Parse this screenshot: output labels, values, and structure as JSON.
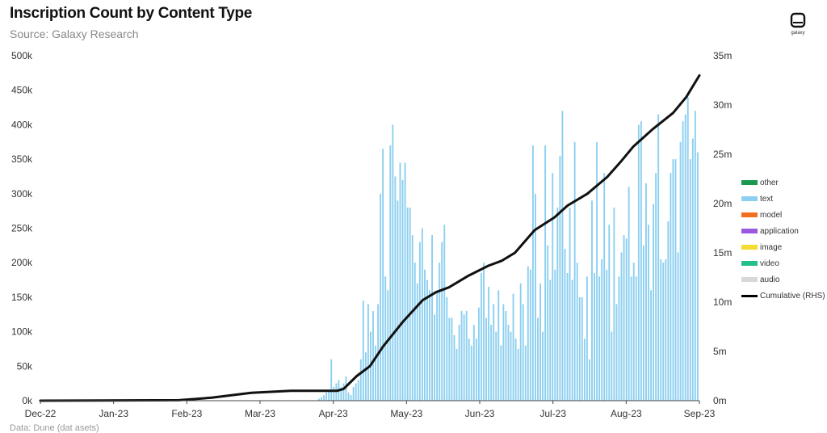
{
  "header": {
    "title": "Inscription Count by Content Type",
    "subtitle": "Source: Galaxy Research",
    "logo_text": "galaxy",
    "note": "Data: Dune (dat   asets)"
  },
  "colors": {
    "other": "#1a9850",
    "text": "#8ccff0",
    "model": "#f07020",
    "application": "#9b59e0",
    "image": "#f5dc32",
    "video": "#22bf8c",
    "audio": "#d8d8d8",
    "cumulative": "#111111",
    "axis": "#444444"
  },
  "chart_data": {
    "type": "bar",
    "title": "Inscription Count by Content Type",
    "subtitle": "Source: Galaxy Research",
    "x_tick_labels": [
      "Dec-22",
      "Jan-23",
      "Feb-23",
      "Mar-23",
      "Apr-23",
      "May-23",
      "Jun-23",
      "Jul-23",
      "Aug-23",
      "Sep-23"
    ],
    "y_left": {
      "range": [
        0,
        500000
      ],
      "ticks": [
        "0k",
        "50k",
        "100k",
        "150k",
        "200k",
        "250k",
        "300k",
        "350k",
        "400k",
        "450k",
        "500k"
      ]
    },
    "y_right": {
      "range": [
        0,
        35000000
      ],
      "ticks": [
        "0m",
        "5m",
        "10m",
        "15m",
        "20m",
        "25m",
        "30m",
        "35m"
      ]
    },
    "legend": [
      "other",
      "text",
      "model",
      "application",
      "image",
      "video",
      "audio",
      "Cumulative (RHS)"
    ],
    "legend_position": "right",
    "grid": false,
    "bar_stack_order": [
      "image",
      "application",
      "text"
    ],
    "series": [
      {
        "name": "text",
        "axis": "left",
        "stacked": true,
        "values": [
          0,
          0,
          0,
          0,
          0,
          0,
          0,
          0,
          0,
          0,
          0,
          0,
          0,
          0,
          0,
          0,
          0,
          0,
          0,
          0,
          0,
          0,
          0,
          0,
          0,
          0,
          0,
          0,
          0,
          0,
          0,
          0,
          0,
          0,
          0,
          0,
          0,
          0,
          0,
          0,
          0,
          0,
          0,
          0,
          0,
          0,
          0,
          0,
          0,
          0,
          0,
          0,
          0,
          0,
          0,
          0,
          0,
          0,
          0,
          0,
          0,
          0,
          0,
          0,
          0,
          0,
          0,
          0,
          0,
          0,
          0,
          0,
          0,
          0,
          0,
          0,
          0,
          0,
          0,
          0,
          0,
          0,
          0,
          0,
          0,
          0,
          0,
          0,
          0,
          0,
          0,
          0,
          0,
          0,
          0,
          0,
          0,
          0,
          0,
          0,
          0,
          0,
          0,
          0,
          0,
          0,
          0,
          0,
          0,
          0,
          0,
          0,
          0,
          3000,
          5000,
          8000,
          12000,
          15000,
          60000,
          20000,
          25000,
          30000,
          20000,
          25000,
          35000,
          12000,
          8000,
          20000,
          25000,
          30000,
          60000,
          145000,
          70000,
          140000,
          100000,
          130000,
          80000,
          140000,
          300000,
          365000,
          180000,
          160000,
          370000,
          400000,
          325000,
          290000,
          345000,
          320000,
          345000,
          280000,
          280000,
          240000,
          200000,
          170000,
          230000,
          250000,
          190000,
          175000,
          160000,
          240000,
          125000,
          160000,
          200000,
          230000,
          255000,
          150000,
          120000,
          120000,
          95000,
          75000,
          110000,
          130000,
          125000,
          130000,
          90000,
          80000,
          110000,
          90000,
          135000,
          185000,
          200000,
          120000,
          165000,
          110000,
          140000,
          100000,
          160000,
          80000,
          140000,
          130000,
          110000,
          100000,
          155000,
          90000,
          75000,
          170000,
          140000,
          80000,
          195000,
          190000,
          370000,
          300000,
          120000,
          170000,
          100000,
          370000,
          225000,
          175000,
          330000,
          190000,
          280000,
          355000,
          420000,
          220000,
          185000,
          280000,
          175000,
          375000,
          200000,
          150000,
          150000,
          90000,
          180000,
          60000,
          290000,
          185000,
          375000,
          180000,
          205000,
          330000,
          190000,
          255000,
          100000,
          280000,
          140000,
          180000,
          215000,
          240000,
          235000,
          310000,
          180000,
          200000,
          180000,
          400000,
          405000,
          225000,
          315000,
          255000,
          160000,
          285000,
          330000,
          415000,
          205000,
          200000,
          205000,
          260000,
          330000,
          350000,
          350000,
          215000,
          375000,
          405000,
          415000,
          440000,
          350000,
          380000,
          420000,
          360000
        ]
      },
      {
        "name": "image",
        "axis": "left",
        "stacked": true,
        "values": [
          0,
          0,
          0,
          0,
          0,
          0,
          0,
          0,
          0,
          0,
          0,
          0,
          0,
          0,
          0,
          0,
          0,
          0,
          0,
          0,
          0,
          0,
          0,
          0,
          0,
          0,
          0,
          0,
          0,
          0,
          0,
          0,
          0,
          0,
          0,
          0,
          0,
          0,
          0,
          0,
          0,
          0,
          0,
          0,
          0,
          0,
          0,
          0,
          0,
          0,
          0,
          0,
          0,
          0,
          0,
          0,
          0,
          0,
          0,
          0,
          0,
          0,
          0,
          0,
          0,
          0,
          0,
          0,
          0,
          0,
          0,
          0,
          0,
          0,
          0,
          0,
          0,
          0,
          0,
          0,
          0,
          0,
          0,
          0,
          0,
          0,
          0,
          0,
          0,
          0,
          0,
          0,
          0,
          0,
          0,
          0,
          0,
          0,
          0,
          0,
          0,
          0,
          0,
          0,
          0,
          0,
          0,
          0,
          0,
          0,
          0,
          0,
          0,
          0,
          0,
          0,
          0,
          0,
          0,
          0,
          0,
          0,
          0,
          0,
          0,
          0,
          0,
          0,
          0,
          0,
          0,
          0,
          0,
          0,
          0,
          0,
          0,
          0,
          0,
          0,
          0,
          0,
          0,
          0,
          0,
          0,
          0,
          0,
          0,
          0,
          0,
          0,
          0,
          0,
          0,
          0,
          0,
          0,
          0,
          0,
          0,
          0,
          0,
          0,
          0,
          0,
          0,
          0,
          0,
          0,
          0,
          0,
          0,
          0,
          0,
          0,
          0,
          0,
          0,
          0,
          0,
          0,
          0,
          0,
          0,
          0,
          0,
          0,
          0,
          0,
          0,
          0,
          0,
          0,
          0,
          0,
          0,
          0,
          0,
          0,
          0,
          0,
          0,
          0,
          0,
          0,
          0,
          0,
          0,
          0,
          0,
          0,
          0,
          0,
          0,
          0,
          0,
          0,
          0,
          0,
          0,
          0,
          0,
          0,
          0,
          0,
          0,
          0,
          0,
          0,
          0,
          0,
          0,
          0,
          0,
          0,
          0,
          0,
          0,
          0,
          0,
          0,
          0,
          0,
          0,
          0,
          0,
          0,
          0,
          0,
          0,
          0,
          0,
          0,
          0,
          0,
          0,
          0,
          0,
          0,
          0,
          0,
          0,
          0,
          0,
          0,
          0,
          0,
          0,
          0,
          0,
          0,
          0,
          0,
          0,
          0,
          0,
          0,
          0,
          0,
          0,
          0,
          0,
          0,
          0,
          0
        ]
      },
      {
        "name": "application",
        "axis": "left",
        "stacked": true,
        "values": [
          0,
          0,
          0,
          0,
          0,
          0,
          0,
          0,
          0,
          0,
          0,
          0,
          0,
          0,
          0,
          0,
          0,
          0,
          0,
          0,
          0,
          0,
          0,
          0,
          0,
          0,
          0,
          0,
          0,
          0,
          0,
          0,
          0,
          0,
          0,
          0,
          0,
          0,
          0,
          0,
          0,
          0,
          0,
          0,
          0,
          0,
          0,
          0,
          0,
          0,
          0,
          0,
          0,
          0,
          0,
          0,
          0,
          0,
          0,
          0,
          0,
          0,
          0,
          0,
          0,
          0,
          0,
          0,
          0,
          0,
          0,
          0,
          0,
          0,
          0,
          0,
          0,
          0,
          0,
          0,
          0,
          0,
          0,
          0,
          0,
          0,
          0,
          0,
          0,
          0,
          0,
          0,
          0,
          0,
          0,
          0,
          0,
          0,
          0,
          0,
          0,
          0,
          0,
          0,
          0,
          0,
          0,
          0,
          0,
          0,
          0,
          0,
          0,
          0,
          0,
          0,
          0,
          0,
          0,
          0,
          0,
          0,
          0,
          0,
          0,
          0,
          0,
          0,
          0,
          0,
          0,
          0,
          0,
          0,
          0,
          0,
          0,
          0,
          0,
          0,
          0,
          0,
          0,
          0,
          0,
          0,
          0,
          0,
          0,
          0,
          0,
          0,
          0,
          0,
          0,
          0,
          0,
          0,
          0,
          0,
          0,
          0,
          0,
          0,
          0,
          0,
          0,
          0,
          0,
          0,
          0,
          0,
          0,
          0,
          0,
          0,
          0,
          0,
          0,
          0,
          0,
          0,
          0,
          0,
          0,
          0,
          0,
          0,
          0,
          0,
          0,
          0,
          0,
          0,
          0,
          0,
          0,
          0,
          0,
          0,
          0,
          0,
          0,
          0,
          0,
          0,
          0,
          0,
          0,
          0,
          0,
          0,
          0,
          0,
          0,
          0,
          0,
          0,
          0,
          0,
          0,
          0,
          0,
          0,
          0,
          0,
          0,
          0,
          0,
          0,
          0,
          0,
          0,
          0,
          0,
          0,
          0,
          0,
          0,
          0,
          0,
          0,
          0,
          0,
          0,
          0,
          0,
          0,
          0,
          0,
          0,
          0,
          0,
          0,
          0,
          0,
          0,
          0,
          0,
          0,
          0,
          0,
          0,
          0,
          0,
          0,
          0,
          0,
          0,
          0,
          0,
          0,
          0,
          0,
          0,
          0,
          0,
          0,
          0,
          0,
          0,
          0,
          0,
          0,
          0,
          0
        ]
      },
      {
        "name": "Cumulative (RHS)",
        "type": "line",
        "axis": "right",
        "x_fraction": [
          0,
          0.21,
          0.26,
          0.32,
          0.38,
          0.45,
          0.46,
          0.48,
          0.5,
          0.52,
          0.55,
          0.58,
          0.6,
          0.62,
          0.65,
          0.68,
          0.7,
          0.72,
          0.75,
          0.78,
          0.8,
          0.83,
          0.86,
          0.88,
          0.9,
          0.93,
          0.96,
          0.98,
          1.0
        ],
        "values": [
          0,
          50000,
          300000,
          800000,
          1000000,
          1000000,
          1200000,
          2500000,
          3500000,
          5500000,
          8000000,
          10200000,
          11000000,
          11500000,
          12700000,
          13700000,
          14200000,
          15000000,
          17300000,
          18600000,
          19800000,
          21000000,
          22700000,
          24200000,
          25800000,
          27600000,
          29200000,
          30800000,
          33000000
        ]
      }
    ]
  }
}
